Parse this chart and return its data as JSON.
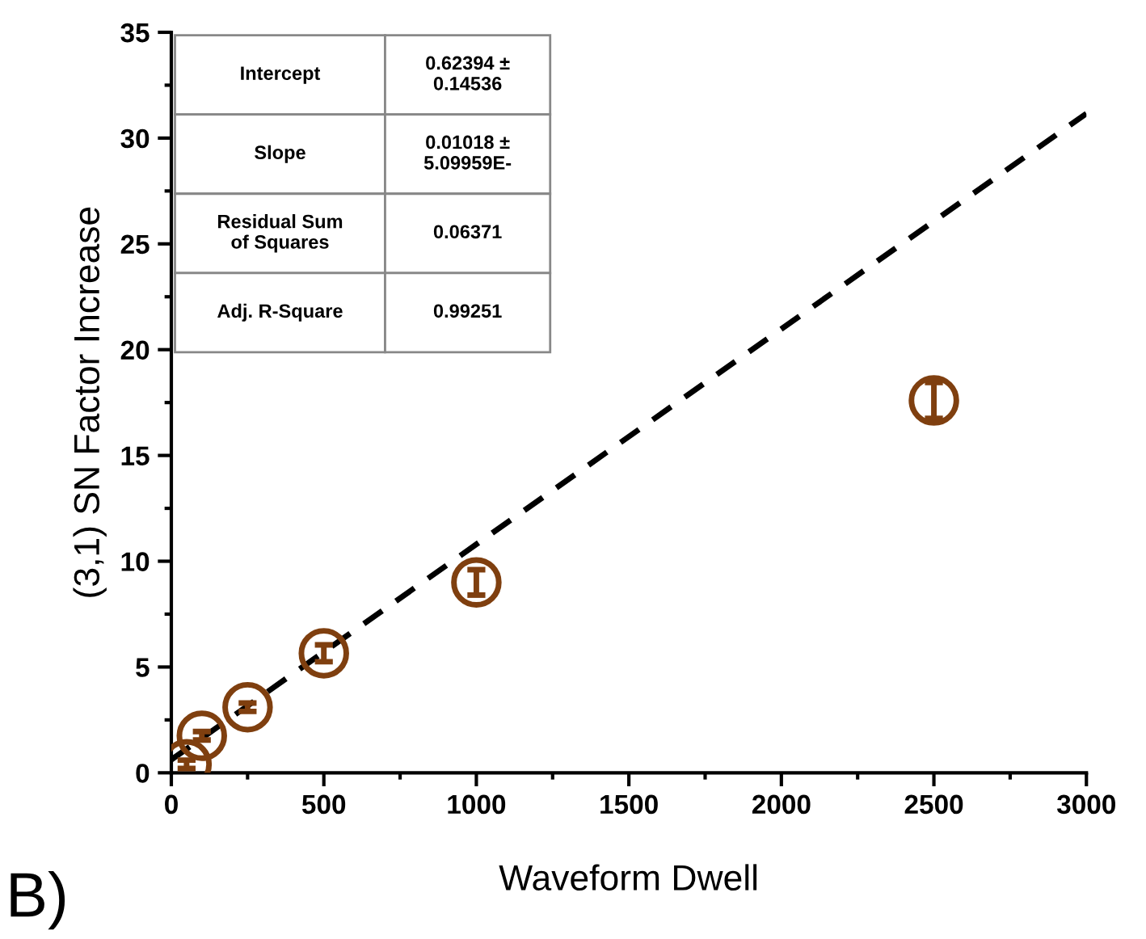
{
  "chart_data": {
    "type": "scatter",
    "xlabel": "Waveform Dwell",
    "ylabel": "(3,1) SN Factor Increase",
    "xlim": [
      0,
      3000
    ],
    "xticks": [
      0,
      500,
      1000,
      1500,
      2000,
      2500,
      3000
    ],
    "ylim": [
      0,
      35
    ],
    "yticks": [
      0,
      5,
      10,
      15,
      20,
      25,
      30,
      35
    ],
    "grid": false,
    "legend": false,
    "series": [
      {
        "color": "#7f3f0f",
        "marker": "circle",
        "x": [
          50,
          100,
          250,
          500,
          1000,
          2500
        ],
        "values": [
          0.4,
          1.75,
          3.1,
          5.65,
          9.0,
          17.6
        ],
        "errors": [
          0.2,
          0.2,
          0.2,
          0.4,
          0.6,
          0.85
        ]
      },
      {
        "type": "line",
        "color": "#000000",
        "line_style": "dashed",
        "marker": "none",
        "x": [
          0,
          3000
        ],
        "values": [
          0.62,
          31.16
        ]
      }
    ],
    "annotations": [
      "Intercept",
      "0.62394 ±\n0.14536",
      "Slope",
      "0.01018 ±\n5.09959E-",
      "Residual Sum\nof Squares",
      "0.06371",
      "Adj. R-Square",
      "0.99251",
      "B)"
    ]
  }
}
